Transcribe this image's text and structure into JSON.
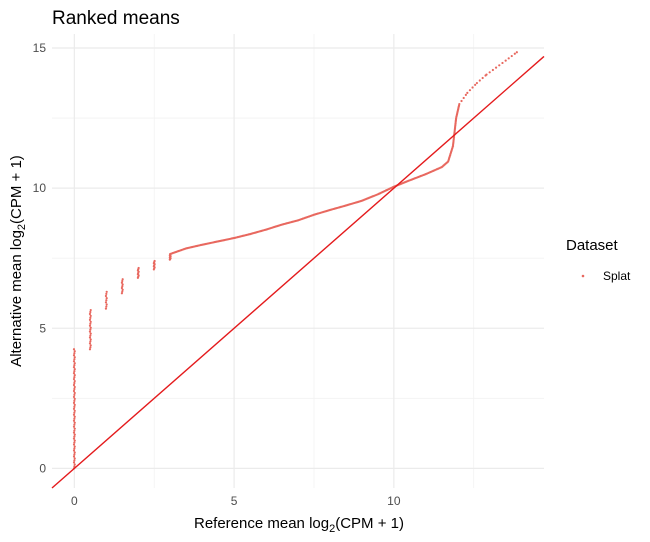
{
  "chart_data": {
    "type": "scatter",
    "title": "Ranked means",
    "xlabel": {
      "pre": "Reference mean log",
      "sub": "2",
      "post": "(CPM + 1)"
    },
    "ylabel": {
      "pre": "Alternative mean log",
      "sub": "2",
      "post": "(CPM + 1)"
    },
    "xlim": [
      -0.7,
      14.7
    ],
    "ylim": [
      -0.7,
      15.5
    ],
    "xticks": [
      0,
      5,
      10
    ],
    "yticks": [
      0,
      5,
      10,
      15
    ],
    "grid": true,
    "legend": {
      "title": "Dataset",
      "entries": [
        "Splat"
      ],
      "placement": "right"
    },
    "point_color": "#E8685F",
    "line_color": "#E41A1C",
    "reference_line": {
      "slope": 1,
      "intercept": 0
    },
    "series": [
      {
        "name": "Splat",
        "clusters": [
          {
            "x": 0.0,
            "y": [
              0.0,
              4.25
            ]
          },
          {
            "x": 0.5,
            "y": [
              4.25,
              5.65
            ]
          },
          {
            "x": 1.0,
            "y": [
              5.7,
              6.3
            ]
          },
          {
            "x": 1.5,
            "y": [
              6.25,
              6.75
            ]
          },
          {
            "x": 2.0,
            "y": [
              6.8,
              7.15
            ]
          },
          {
            "x": 2.5,
            "y": [
              7.1,
              7.4
            ]
          },
          {
            "x": 3.0,
            "y": [
              7.45,
              7.65
            ]
          }
        ],
        "curve": [
          [
            3.0,
            7.65
          ],
          [
            3.5,
            7.85
          ],
          [
            4.0,
            7.98
          ],
          [
            4.5,
            8.1
          ],
          [
            5.0,
            8.22
          ],
          [
            5.5,
            8.36
          ],
          [
            6.0,
            8.52
          ],
          [
            6.5,
            8.7
          ],
          [
            7.0,
            8.85
          ],
          [
            7.5,
            9.05
          ],
          [
            8.0,
            9.22
          ],
          [
            8.5,
            9.38
          ],
          [
            9.0,
            9.55
          ],
          [
            9.5,
            9.78
          ],
          [
            10.0,
            10.05
          ],
          [
            10.5,
            10.28
          ],
          [
            11.0,
            10.5
          ],
          [
            11.5,
            10.75
          ],
          [
            11.7,
            10.95
          ],
          [
            11.85,
            11.5
          ],
          [
            11.95,
            12.5
          ],
          [
            12.05,
            13.0
          ],
          [
            12.3,
            13.4
          ],
          [
            12.6,
            13.75
          ],
          [
            12.9,
            14.05
          ],
          [
            13.2,
            14.3
          ],
          [
            13.5,
            14.55
          ],
          [
            13.85,
            14.85
          ]
        ]
      }
    ]
  }
}
